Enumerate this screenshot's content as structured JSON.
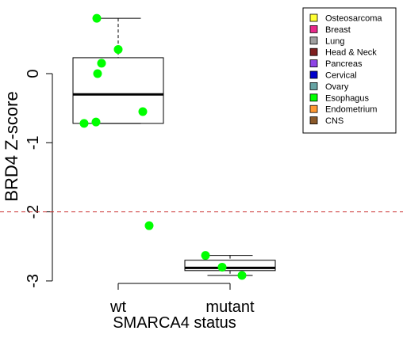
{
  "chart_data": {
    "type": "box",
    "xlabel": "SMARCA4 status",
    "ylabel": "BRD4 Z-score",
    "categories": [
      "wt",
      "mutant"
    ],
    "yticks": [
      0,
      -1,
      -2,
      -3
    ],
    "ylim": [
      -3.05,
      0.85
    ],
    "reference_line": {
      "y": -2,
      "style": "dashed",
      "color": "#cc3333"
    },
    "boxes": [
      {
        "group": "wt",
        "whisker_low": -0.72,
        "q1": -0.72,
        "median": -0.3,
        "q3": 0.23,
        "whisker_high": 0.8
      },
      {
        "group": "mutant",
        "whisker_low": -2.92,
        "q1": -2.85,
        "median": -2.81,
        "q3": -2.7,
        "whisker_high": -2.63
      }
    ],
    "points": [
      {
        "group": "wt",
        "y": 0.8,
        "tissue": "Esophagus"
      },
      {
        "group": "wt",
        "y": 0.35,
        "tissue": "Esophagus"
      },
      {
        "group": "wt",
        "y": 0.15,
        "tissue": "Esophagus"
      },
      {
        "group": "wt",
        "y": 0.0,
        "tissue": "Esophagus"
      },
      {
        "group": "wt",
        "y": -0.55,
        "tissue": "Esophagus"
      },
      {
        "group": "wt",
        "y": -0.7,
        "tissue": "Esophagus"
      },
      {
        "group": "wt",
        "y": -0.72,
        "tissue": "Esophagus"
      },
      {
        "group": "wt",
        "y": -2.2,
        "tissue": "Esophagus"
      },
      {
        "group": "mutant",
        "y": -2.63,
        "tissue": "Esophagus"
      },
      {
        "group": "mutant",
        "y": -2.8,
        "tissue": "Esophagus"
      },
      {
        "group": "mutant",
        "y": -2.92,
        "tissue": "Esophagus"
      }
    ],
    "legend": {
      "position": "top-right",
      "entries": [
        {
          "label": "Osteosarcoma",
          "color": "#ffff33"
        },
        {
          "label": "Breast",
          "color": "#e7298a"
        },
        {
          "label": "Lung",
          "color": "#a0a0a0"
        },
        {
          "label": "Head & Neck",
          "color": "#7f1f1f"
        },
        {
          "label": "Pancreas",
          "color": "#8e44e6"
        },
        {
          "label": "Cervical",
          "color": "#0000cc"
        },
        {
          "label": "Ovary",
          "color": "#66a3a3"
        },
        {
          "label": "Esophagus",
          "color": "#00ff00"
        },
        {
          "label": "Endometrium",
          "color": "#ff9933"
        },
        {
          "label": "CNS",
          "color": "#8b5a2b"
        }
      ]
    }
  }
}
